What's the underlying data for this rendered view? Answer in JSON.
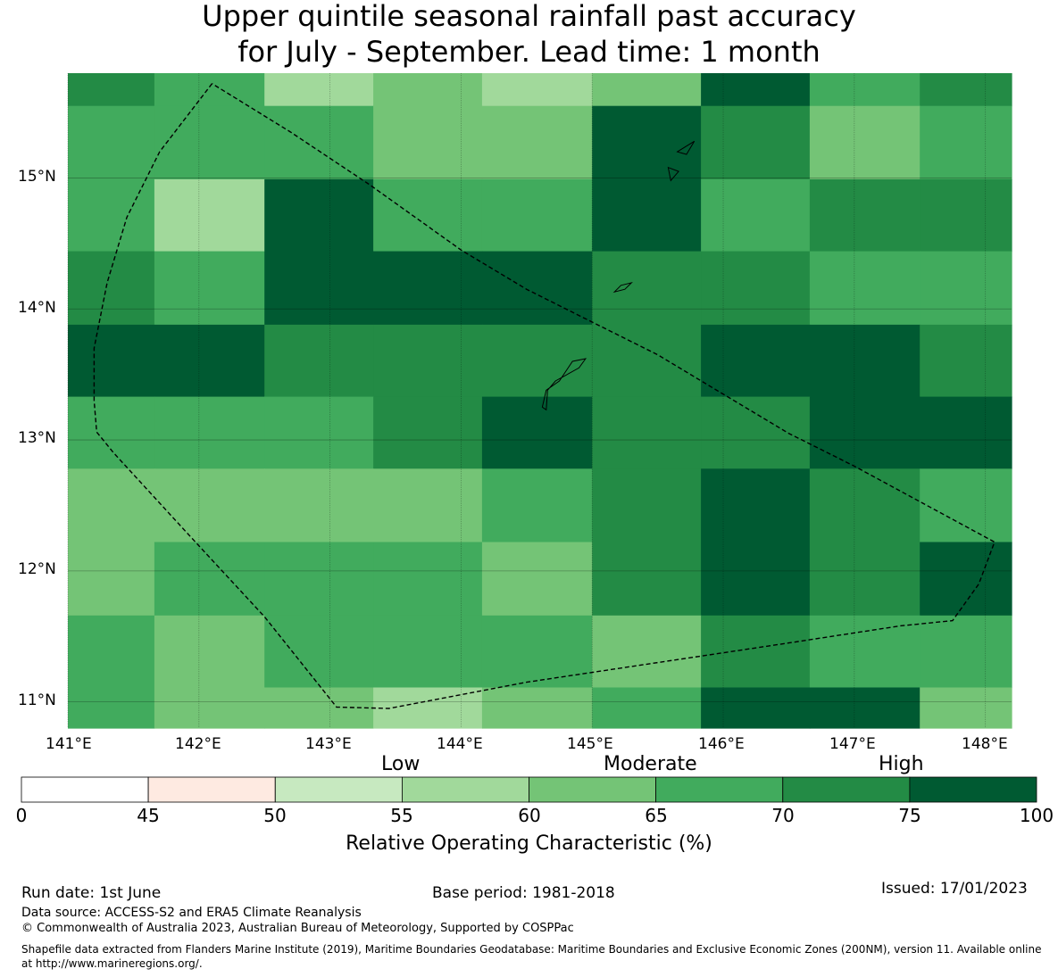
{
  "title": {
    "line1": "Upper quintile seasonal rainfall past accuracy",
    "line2": "for July - September. Lead time: 1 month"
  },
  "map": {
    "lon_labels": [
      "141°E",
      "142°E",
      "143°E",
      "144°E",
      "145°E",
      "146°E",
      "147°E",
      "148°E"
    ],
    "lat_labels": [
      "15°N",
      "14°N",
      "13°N",
      "12°N",
      "11°N"
    ],
    "lon_range": [
      141.0,
      148.2
    ],
    "lat_range": [
      10.8,
      15.8
    ],
    "grid_lines": "on",
    "cell_lon_edges": [
      141.0,
      141.66,
      142.5,
      143.33,
      144.16,
      145.0,
      145.83,
      146.66,
      147.5,
      148.2
    ],
    "cell_lat_edges": [
      15.8,
      15.55,
      14.99,
      14.44,
      13.88,
      13.33,
      12.78,
      12.22,
      11.66,
      11.11,
      10.8
    ],
    "roc_grid_classes": [
      [
        6,
        5,
        3,
        4,
        3,
        4,
        7,
        5,
        6
      ],
      [
        5,
        5,
        5,
        4,
        4,
        7,
        6,
        4,
        5
      ],
      [
        5,
        3,
        7,
        5,
        5,
        7,
        5,
        6,
        6
      ],
      [
        6,
        5,
        7,
        7,
        7,
        6,
        6,
        5,
        5
      ],
      [
        7,
        7,
        6,
        6,
        6,
        6,
        7,
        7,
        6
      ],
      [
        5,
        5,
        5,
        6,
        7,
        6,
        6,
        7,
        7
      ],
      [
        4,
        4,
        4,
        4,
        5,
        6,
        7,
        6,
        5
      ],
      [
        4,
        5,
        5,
        5,
        4,
        6,
        7,
        6,
        7
      ],
      [
        5,
        4,
        5,
        5,
        5,
        4,
        6,
        5,
        5
      ],
      [
        5,
        4,
        4,
        3,
        4,
        5,
        7,
        7,
        4
      ]
    ],
    "eez_boundary_lonlat": [
      [
        142.1,
        15.72
      ],
      [
        141.7,
        15.2
      ],
      [
        141.45,
        14.7
      ],
      [
        141.3,
        14.2
      ],
      [
        141.2,
        13.7
      ],
      [
        141.2,
        13.3
      ],
      [
        141.22,
        13.06
      ],
      [
        141.35,
        12.9
      ],
      [
        141.9,
        12.3
      ],
      [
        142.5,
        11.65
      ],
      [
        143.05,
        10.96
      ],
      [
        143.45,
        10.95
      ],
      [
        144.5,
        11.15
      ],
      [
        145.5,
        11.3
      ],
      [
        146.5,
        11.45
      ],
      [
        147.35,
        11.58
      ],
      [
        147.75,
        11.62
      ],
      [
        147.95,
        11.9
      ],
      [
        148.07,
        12.22
      ],
      [
        147.0,
        12.8
      ],
      [
        146.5,
        13.05
      ],
      [
        146.0,
        13.35
      ],
      [
        145.5,
        13.65
      ],
      [
        145.2,
        13.8
      ],
      [
        144.9,
        13.95
      ],
      [
        144.5,
        14.15
      ],
      [
        144.0,
        14.45
      ],
      [
        143.3,
        14.95
      ],
      [
        142.7,
        15.35
      ],
      [
        142.1,
        15.72
      ]
    ],
    "islands_lonlat": [
      [
        [
          144.95,
          13.62
        ],
        [
          144.85,
          13.6
        ],
        [
          144.75,
          13.45
        ],
        [
          144.65,
          13.38
        ],
        [
          144.62,
          13.25
        ],
        [
          144.65,
          13.23
        ],
        [
          144.66,
          13.38
        ],
        [
          144.72,
          13.45
        ],
        [
          144.9,
          13.55
        ],
        [
          144.95,
          13.62
        ]
      ],
      [
        [
          145.22,
          14.18
        ],
        [
          145.3,
          14.2
        ],
        [
          145.25,
          14.15
        ],
        [
          145.17,
          14.13
        ],
        [
          145.22,
          14.18
        ]
      ],
      [
        [
          145.65,
          15.2
        ],
        [
          145.78,
          15.28
        ],
        [
          145.72,
          15.18
        ],
        [
          145.65,
          15.2
        ]
      ],
      [
        [
          145.58,
          15.08
        ],
        [
          145.66,
          15.05
        ],
        [
          145.6,
          14.98
        ],
        [
          145.58,
          15.08
        ]
      ]
    ]
  },
  "colorbar": {
    "category_labels": [
      "Low",
      "Moderate",
      "High"
    ],
    "tick_labels": [
      "0",
      "45",
      "50",
      "55",
      "60",
      "65",
      "70",
      "75",
      "100"
    ],
    "colors": [
      "#ffffff",
      "#feeae1",
      "#c7e9c0",
      "#a1d99b",
      "#74c476",
      "#41ab5d",
      "#238b45",
      "#005a32"
    ],
    "label": "Relative Operating Characteristic (%)"
  },
  "footer": {
    "run_date": "Run date: 1st June",
    "base_period": "Base period: 1981-2018",
    "issued": "Issued: 17/01/2023",
    "data_source": "Data source: ACCESS-S2 and ERA5 Climate Reanalysis",
    "copyright": "© Commonwealth of Australia 2023, Australian Bureau of Meteorology, Supported by COSPPac",
    "shapefile_line1": "Shapefile data extracted from Flanders Marine Institute (2019), Maritime Boundaries Geodatabase: Maritime Boundaries and Exclusive Economic Zones (200NM), version 11. Available online",
    "shapefile_line2": "at http://www.marineregions.org/."
  }
}
